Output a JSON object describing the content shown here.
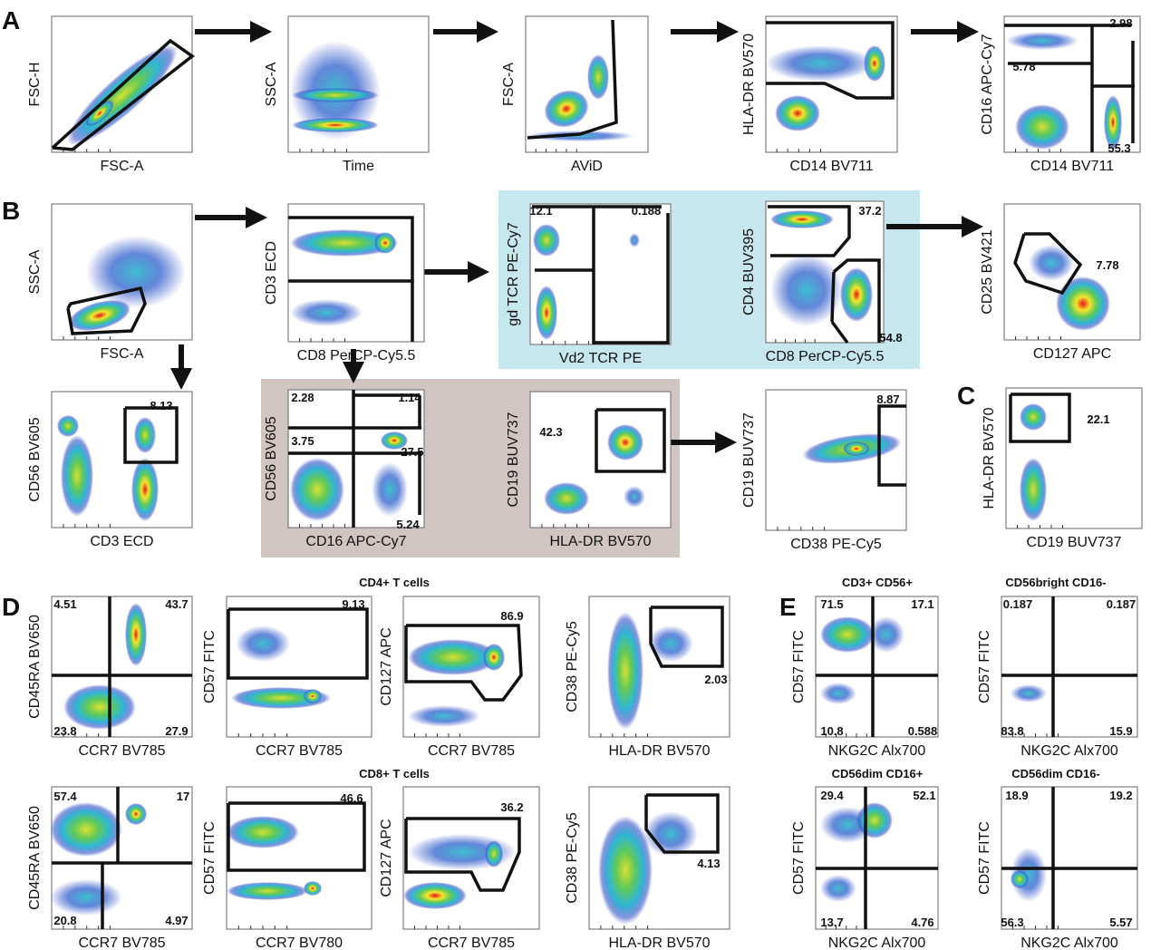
{
  "panel_labels": [
    "A",
    "B",
    "C",
    "D",
    "E"
  ],
  "subtitles": [
    "CD4+ T cells",
    "CD8+ T cells",
    "CD3+ CD56+",
    "CD56bright CD16-",
    "CD56dim CD16+",
    "CD56dim CD16-"
  ],
  "plots": [
    {
      "x_label": "FSC-A",
      "y_label": "FSC-H",
      "gates": []
    },
    {
      "x_label": "Time",
      "y_label": "SSC-A",
      "gates": []
    },
    {
      "x_label": "AViD",
      "y_label": "FSC-A",
      "gates": []
    },
    {
      "x_label": "CD14 BV711",
      "y_label": "HLA-DR BV570",
      "gates": []
    },
    {
      "x_label": "CD14 BV711",
      "y_label": "CD16 APC-Cy7",
      "gates": [
        "2.98",
        "5.78",
        "55.3"
      ]
    },
    {
      "x_label": "FSC-A",
      "y_label": "SSC-A",
      "gates": []
    },
    {
      "x_label": "CD8 PerCP-Cy5.5",
      "y_label": "CD3 ECD",
      "gates": []
    },
    {
      "x_label": "Vd2 TCR PE",
      "y_label": "gd TCR  PE-Cy7",
      "gates": [
        "12.1",
        "0.188"
      ]
    },
    {
      "x_label": "CD8 PerCP-Cy5.5",
      "y_label": "CD4 BUV395",
      "gates": [
        "37.2",
        "54.8"
      ]
    },
    {
      "x_label": "CD127 APC",
      "y_label": "CD25 BV421",
      "gates": [
        "7.78"
      ]
    },
    {
      "x_label": "CD3 ECD",
      "y_label": "CD56 BV605",
      "gates": [
        "8.13"
      ]
    },
    {
      "x_label": "CD16 APC-Cy7",
      "y_label": "CD56 BV605",
      "gates": [
        "2.28",
        "1.14",
        "3.75",
        "27.5",
        "5.24"
      ]
    },
    {
      "x_label": "HLA-DR BV570",
      "y_label": "CD19 BUV737",
      "gates": [
        "42.3"
      ]
    },
    {
      "x_label": "CD38 PE-Cy5",
      "y_label": "CD19 BUV737",
      "gates": [
        "8.87"
      ]
    },
    {
      "x_label": "CD19 BUV737",
      "y_label": "HLA-DR BV570",
      "gates": [
        "22.1"
      ]
    },
    {
      "x_label": "CCR7 BV785",
      "y_label": "CD45RA BV650",
      "gates": [
        "4.51",
        "43.7",
        "23.8",
        "27.9"
      ]
    },
    {
      "x_label": "CCR7 BV785",
      "y_label": "CD57 FITC",
      "gates": [
        "9.13"
      ]
    },
    {
      "x_label": "CCR7 BV785",
      "y_label": "CD127 APC",
      "gates": [
        "86.9"
      ]
    },
    {
      "x_label": "HLA-DR BV570",
      "y_label": "CD38 PE-Cy5",
      "gates": [
        "2.03"
      ]
    },
    {
      "x_label": "CCR7 BV785",
      "y_label": "CD45RA BV650",
      "gates": [
        "57.4",
        "17",
        "20.8",
        "4.97"
      ]
    },
    {
      "x_label": "CCR7 BV780",
      "y_label": "CD57 FITC",
      "gates": [
        "46.6"
      ]
    },
    {
      "x_label": "CCR7 BV785",
      "y_label": "CD127 APC",
      "gates": [
        "36.2"
      ]
    },
    {
      "x_label": "HLA-DR BV570",
      "y_label": "CD38 PE-Cy5",
      "gates": [
        "4.13"
      ]
    },
    {
      "x_label": "NKG2C Alx700",
      "y_label": "CD57 FITC",
      "gates": [
        "71.5",
        "17.1",
        "10.8",
        "0.588"
      ]
    },
    {
      "x_label": "NKG2C Alx700",
      "y_label": "CD57 FITC",
      "gates": [
        "0.187",
        "0.187",
        "83.8",
        "15.9"
      ]
    },
    {
      "x_label": "NKG2C Alx700",
      "y_label": "CD57 FITC",
      "gates": [
        "29.4",
        "52.1",
        "13.7",
        "4.76"
      ]
    },
    {
      "x_label": "NKG2C Alx700",
      "y_label": "CD57 FITC",
      "gates": [
        "18.9",
        "19.2",
        "56.3",
        "5.57"
      ]
    }
  ]
}
